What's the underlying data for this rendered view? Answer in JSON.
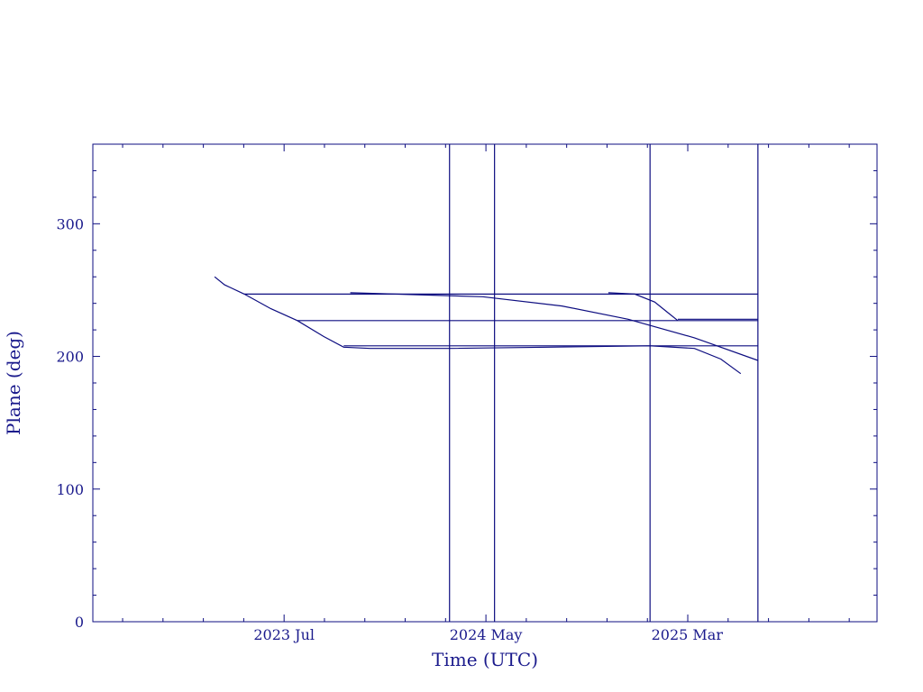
{
  "chart_data": {
    "type": "line",
    "title": "",
    "xlabel": "Time (UTC)",
    "ylabel": "Plane (deg)",
    "color": "#0d0d80",
    "x_axis_unit": "days since 2023 Jul",
    "x_tick_labels": [
      {
        "label": "2023 Jul",
        "x": 0
      },
      {
        "label": "2024 May",
        "x": 305
      },
      {
        "label": "2025 Mar",
        "x": 609
      }
    ],
    "xlim": [
      -289,
      896
    ],
    "ylim": [
      0,
      360
    ],
    "y_ticks": [
      0,
      100,
      200,
      300
    ],
    "vertical_lines": [
      250,
      318,
      553,
      716
    ],
    "series": [
      {
        "name": "",
        "points": [
          [
            -105,
            260
          ],
          [
            -90,
            254
          ],
          [
            -60,
            247
          ],
          [
            -20,
            236
          ],
          [
            20,
            227
          ],
          [
            60,
            215
          ],
          [
            90,
            207
          ],
          [
            130,
            206
          ],
          [
            250,
            206
          ],
          [
            400,
            207
          ],
          [
            553,
            208
          ],
          [
            620,
            206
          ],
          [
            660,
            198
          ],
          [
            690,
            187
          ]
        ]
      },
      {
        "name": "",
        "points": [
          [
            -60,
            247
          ],
          [
            716,
            247
          ]
        ]
      },
      {
        "name": "",
        "points": [
          [
            20,
            227
          ],
          [
            716,
            227
          ]
        ]
      },
      {
        "name": "",
        "points": [
          [
            90,
            208
          ],
          [
            716,
            208
          ]
        ]
      },
      {
        "name": "",
        "points": [
          [
            100,
            248
          ],
          [
            300,
            245
          ],
          [
            420,
            238
          ],
          [
            520,
            228
          ],
          [
            620,
            214
          ],
          [
            716,
            197
          ]
        ]
      },
      {
        "name": "",
        "points": [
          [
            490,
            248
          ],
          [
            530,
            247
          ],
          [
            560,
            241
          ],
          [
            580,
            233
          ],
          [
            595,
            227
          ]
        ]
      },
      {
        "name": "",
        "points": [
          [
            595,
            228
          ],
          [
            716,
            228
          ]
        ]
      }
    ]
  }
}
